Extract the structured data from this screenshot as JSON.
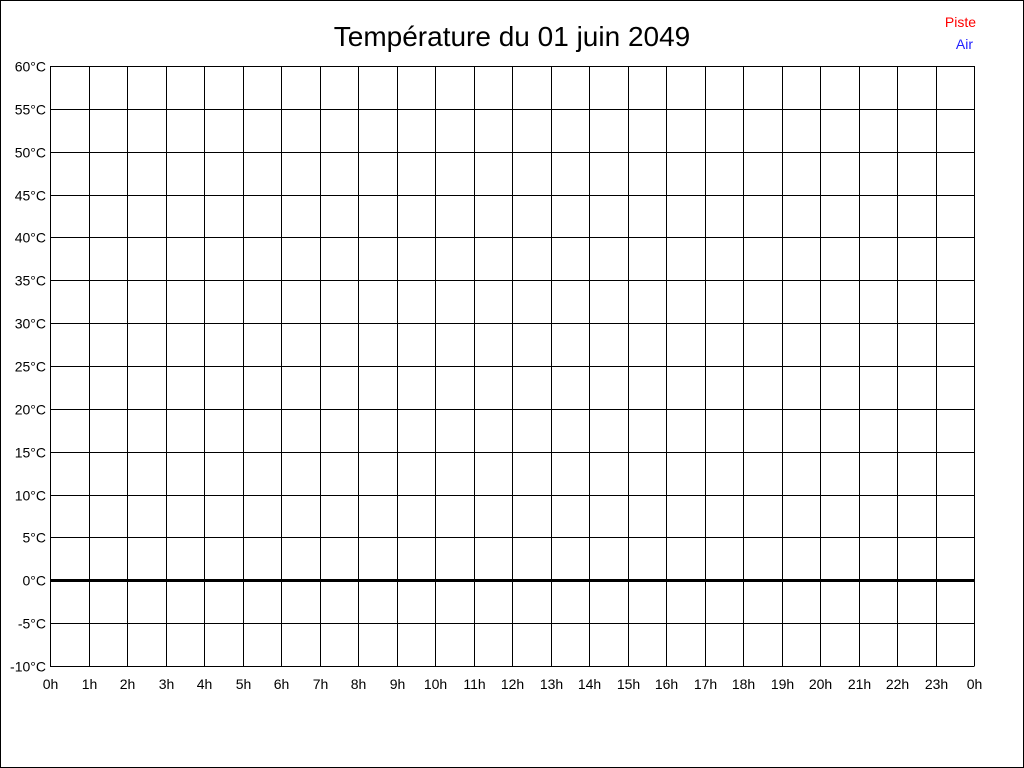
{
  "chart_data": {
    "type": "line",
    "title": "Température du 01 juin 2049",
    "xlabel": "",
    "ylabel": "",
    "x_ticks": [
      "0h",
      "1h",
      "2h",
      "3h",
      "4h",
      "5h",
      "6h",
      "7h",
      "8h",
      "9h",
      "10h",
      "11h",
      "12h",
      "13h",
      "14h",
      "15h",
      "16h",
      "17h",
      "18h",
      "19h",
      "20h",
      "21h",
      "22h",
      "23h",
      "0h"
    ],
    "y_ticks": [
      "60°C",
      "55°C",
      "50°C",
      "45°C",
      "40°C",
      "35°C",
      "30°C",
      "25°C",
      "20°C",
      "15°C",
      "10°C",
      "5°C",
      "0°C",
      "-5°C",
      "-10°C"
    ],
    "xlim": [
      0,
      24
    ],
    "ylim": [
      -10,
      60
    ],
    "grid": true,
    "legend_position": "top-right",
    "series": [
      {
        "name": "Piste",
        "color": "#ff0000",
        "values": []
      },
      {
        "name": "Air",
        "color": "#2020ff",
        "values": []
      }
    ]
  }
}
